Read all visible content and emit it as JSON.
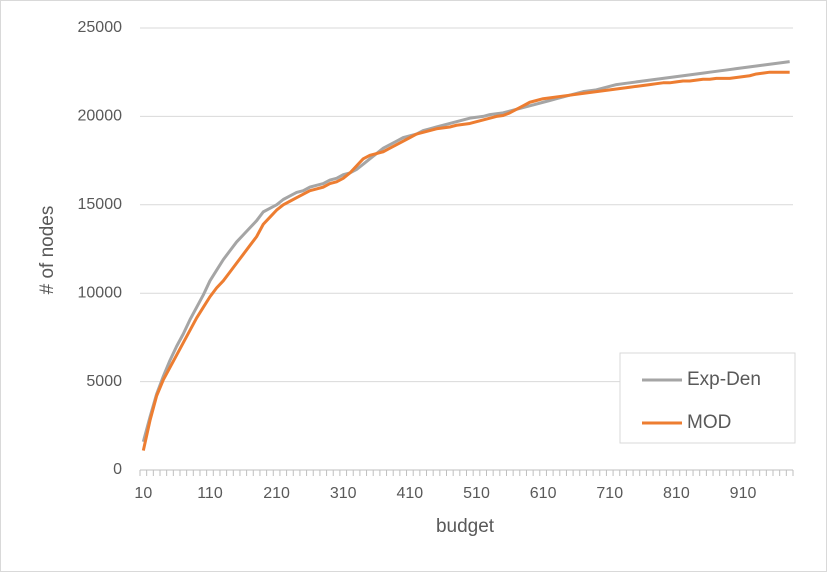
{
  "chart_data": {
    "type": "line",
    "x_label": "budget",
    "y_label": "# of nodes",
    "categories": [
      "10",
      null,
      null,
      null,
      null,
      null,
      null,
      null,
      null,
      null,
      "110",
      null,
      null,
      null,
      null,
      null,
      null,
      null,
      null,
      null,
      "210",
      null,
      null,
      null,
      null,
      null,
      null,
      null,
      null,
      null,
      "310",
      null,
      null,
      null,
      null,
      null,
      null,
      null,
      null,
      null,
      "410",
      null,
      null,
      null,
      null,
      null,
      null,
      null,
      null,
      null,
      "510",
      null,
      null,
      null,
      null,
      null,
      null,
      null,
      null,
      null,
      "610",
      null,
      null,
      null,
      null,
      null,
      null,
      null,
      null,
      null,
      "710",
      null,
      null,
      null,
      null,
      null,
      null,
      null,
      null,
      null,
      "810",
      null,
      null,
      null,
      null,
      null,
      null,
      null,
      null,
      null,
      "910",
      null,
      null,
      null,
      null,
      null,
      null,
      null
    ],
    "series": [
      {
        "name": "Exp-Den",
        "color": "#a5a5a5",
        "values": [
          1600,
          3000,
          4300,
          5300,
          6200,
          7000,
          7700,
          8500,
          9200,
          9900,
          10700,
          11300,
          11900,
          12400,
          12900,
          13300,
          13700,
          14100,
          14600,
          14800,
          15000,
          15300,
          15500,
          15700,
          15800,
          16000,
          16100,
          16200,
          16400,
          16500,
          16700,
          16800,
          17000,
          17300,
          17600,
          17900,
          18200,
          18400,
          18600,
          18800,
          18900,
          19000,
          19200,
          19300,
          19400,
          19500,
          19600,
          19700,
          19800,
          19900,
          19950,
          20000,
          20100,
          20150,
          20200,
          20300,
          20400,
          20500,
          20600,
          20700,
          20800,
          20900,
          21000,
          21100,
          21200,
          21300,
          21400,
          21450,
          21500,
          21600,
          21700,
          21800,
          21850,
          21900,
          21950,
          22000,
          22050,
          22100,
          22150,
          22200,
          22250,
          22300,
          22350,
          22400,
          22450,
          22500,
          22550,
          22600,
          22650,
          22700,
          22750,
          22800,
          22850,
          22900,
          22950,
          23000,
          23050,
          23100
        ]
      },
      {
        "name": "MOD",
        "color": "#ed7d31",
        "values": [
          1100,
          2800,
          4200,
          5100,
          5800,
          6500,
          7200,
          7900,
          8600,
          9200,
          9800,
          10300,
          10700,
          11200,
          11700,
          12200,
          12700,
          13200,
          13900,
          14300,
          14700,
          15000,
          15200,
          15400,
          15600,
          15800,
          15900,
          16000,
          16200,
          16300,
          16500,
          16800,
          17200,
          17600,
          17800,
          17900,
          18000,
          18200,
          18400,
          18600,
          18800,
          19000,
          19100,
          19200,
          19300,
          19350,
          19400,
          19500,
          19550,
          19600,
          19700,
          19800,
          19900,
          20000,
          20050,
          20200,
          20400,
          20600,
          20800,
          20900,
          21000,
          21050,
          21100,
          21150,
          21200,
          21250,
          21300,
          21350,
          21400,
          21450,
          21500,
          21550,
          21600,
          21650,
          21700,
          21750,
          21800,
          21850,
          21900,
          21900,
          21950,
          22000,
          22000,
          22050,
          22100,
          22100,
          22150,
          22150,
          22150,
          22200,
          22250,
          22300,
          22400,
          22450,
          22500,
          22500,
          22500,
          22500
        ]
      }
    ],
    "ylim": [
      0,
      25000
    ],
    "yticks": [
      0,
      5000,
      10000,
      15000,
      20000,
      25000
    ],
    "grid": true,
    "legend": "lower right"
  }
}
